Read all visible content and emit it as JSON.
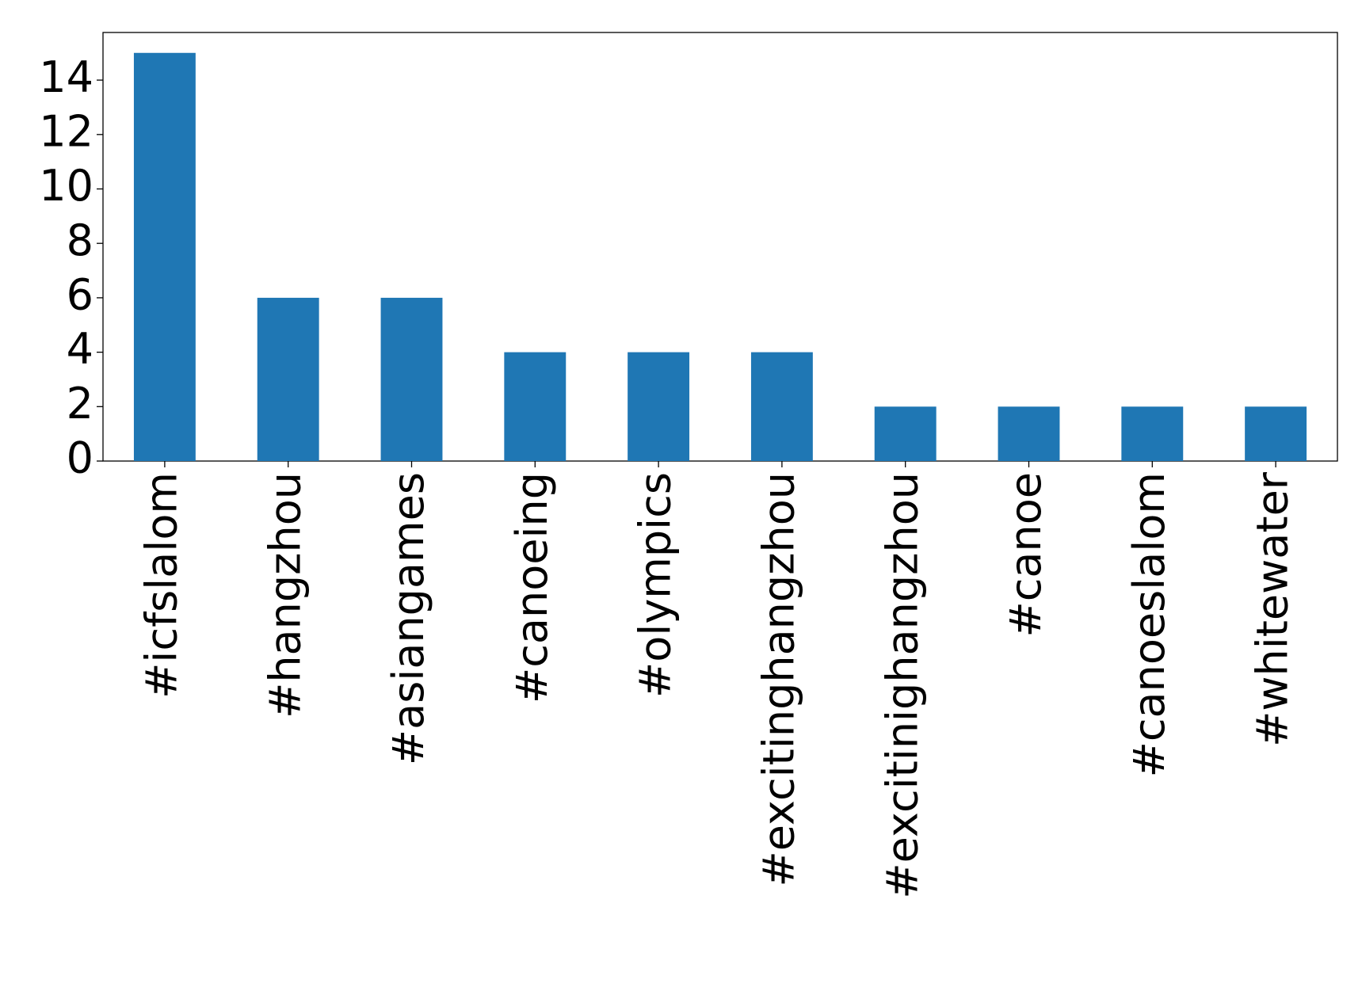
{
  "chart_data": {
    "type": "bar",
    "categories": [
      "#icfslalom",
      "#hangzhou",
      "#asiangames",
      "#canoeing",
      "#olympics",
      "#excitinghangzhou",
      "#excitinighangzhou",
      "#canoe",
      "#canoeslalom",
      "#whitewater"
    ],
    "values": [
      15,
      6,
      6,
      4,
      4,
      4,
      2,
      2,
      2,
      2
    ],
    "color": "#1f77b4",
    "ylim": [
      0,
      15.75
    ],
    "yticks": [
      0,
      2,
      4,
      6,
      8,
      10,
      12,
      14
    ],
    "grid": false
  }
}
